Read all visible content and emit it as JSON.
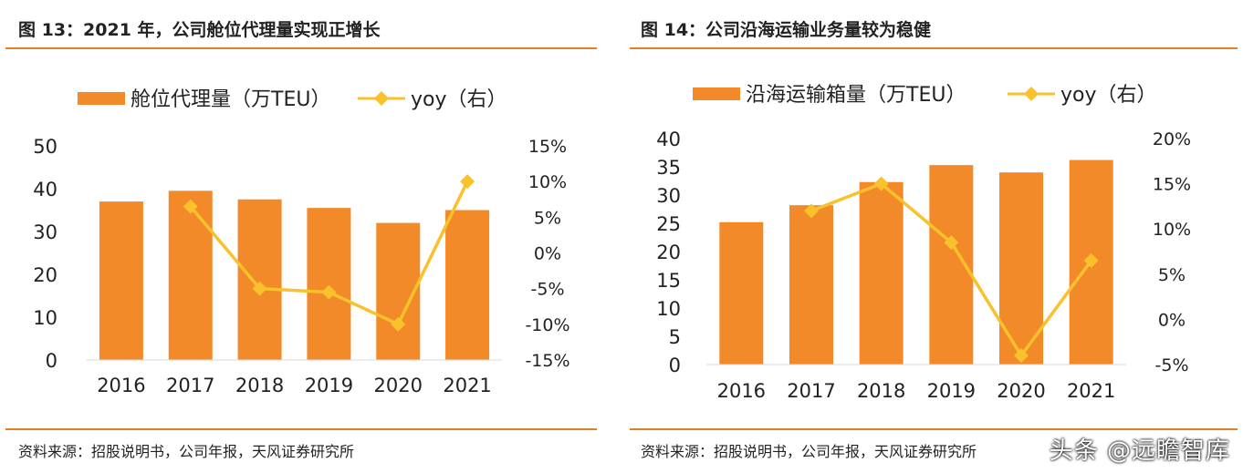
{
  "figures": [
    {
      "title": "图 13：2021 年，公司舱位代理量实现正增长",
      "source": "资料来源：招股说明书，公司年报，天风证券研究所"
    },
    {
      "title": "图 14：公司沿海运输业务量较为稳健",
      "source": "资料来源：招股说明书，公司年报，天风证券研究所"
    }
  ],
  "watermark": "头条 @远瞻智库",
  "chart_data": [
    {
      "type": "bar",
      "categories": [
        "2016",
        "2017",
        "2018",
        "2019",
        "2020",
        "2021"
      ],
      "series": [
        {
          "name": "舱位代理量（万TEU）",
          "type": "bar",
          "axis": "left",
          "values": [
            37,
            39.5,
            37.5,
            35.5,
            32,
            35
          ],
          "color": "#f28a2a"
        },
        {
          "name": "yoy（右）",
          "type": "line",
          "axis": "right",
          "values": [
            null,
            6.5,
            -5,
            -5.5,
            -10,
            10
          ],
          "color": "#f9c12b"
        }
      ],
      "y_left": {
        "min": 0,
        "max": 50,
        "step": 10,
        "ticks": [
          "0",
          "10",
          "20",
          "30",
          "40",
          "50"
        ]
      },
      "y_right": {
        "min": -15,
        "max": 15,
        "step": 5,
        "ticks": [
          "-15%",
          "-10%",
          "-5%",
          "0%",
          "5%",
          "10%",
          "15%"
        ]
      },
      "legend": "top",
      "grid": false
    },
    {
      "type": "bar",
      "categories": [
        "2016",
        "2017",
        "2018",
        "2019",
        "2020",
        "2021"
      ],
      "series": [
        {
          "name": "沿海运输箱量（万TEU）",
          "type": "bar",
          "axis": "left",
          "values": [
            25.2,
            28.2,
            32.3,
            35.3,
            34,
            36.2
          ],
          "color": "#f28a2a"
        },
        {
          "name": "yoy（右）",
          "type": "line",
          "axis": "right",
          "values": [
            null,
            12,
            15,
            8.5,
            -4,
            6.5
          ],
          "color": "#f9c12b"
        }
      ],
      "y_left": {
        "min": 0,
        "max": 40,
        "step": 5,
        "ticks": [
          "0",
          "5",
          "10",
          "15",
          "20",
          "25",
          "30",
          "35",
          "40"
        ]
      },
      "y_right": {
        "min": -5,
        "max": 20,
        "step": 5,
        "ticks": [
          "-5%",
          "0%",
          "5%",
          "10%",
          "15%",
          "20%"
        ]
      },
      "legend": "top",
      "grid": false
    }
  ]
}
